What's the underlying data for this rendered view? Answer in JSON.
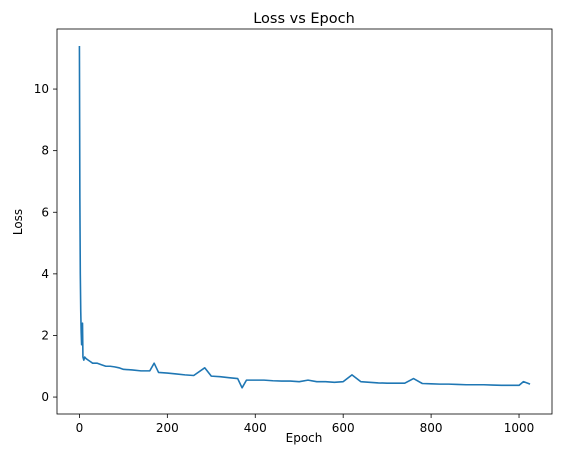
{
  "chart_data": {
    "type": "line",
    "title": "Loss vs Epoch",
    "xlabel": "Epoch",
    "ylabel": "Loss",
    "xlim": [
      -51,
      1075
    ],
    "ylim": [
      -0.55,
      11.95
    ],
    "xticks": [
      0,
      200,
      400,
      600,
      800,
      1000
    ],
    "xtick_labels": [
      "0",
      "200",
      "400",
      "600",
      "800",
      "1000"
    ],
    "yticks": [
      0,
      2,
      4,
      6,
      8,
      10
    ],
    "ytick_labels": [
      "0",
      "2",
      "4",
      "6",
      "8",
      "10"
    ],
    "grid": false,
    "legend": "none",
    "color": "#1f77b4",
    "series": [
      {
        "x": [
          0,
          1,
          2,
          3,
          4,
          5,
          6,
          7,
          8,
          10,
          12,
          15,
          20,
          25,
          30,
          40,
          50,
          60,
          70,
          80,
          90,
          100,
          120,
          140,
          160,
          170,
          180,
          200,
          220,
          240,
          260,
          285,
          300,
          320,
          340,
          360,
          370,
          380,
          400,
          420,
          440,
          460,
          480,
          500,
          520,
          540,
          560,
          580,
          600,
          620,
          640,
          660,
          680,
          700,
          720,
          740,
          760,
          780,
          800,
          820,
          840,
          860,
          880,
          900,
          920,
          940,
          960,
          980,
          1000,
          1010,
          1020,
          1025
        ],
        "y": [
          11.4,
          6.5,
          4.0,
          2.8,
          2.1,
          1.7,
          1.9,
          2.4,
          1.3,
          1.2,
          1.3,
          1.25,
          1.2,
          1.15,
          1.1,
          1.1,
          1.05,
          1.0,
          1.0,
          0.98,
          0.95,
          0.9,
          0.88,
          0.85,
          0.85,
          1.1,
          0.8,
          0.78,
          0.75,
          0.72,
          0.7,
          0.95,
          0.68,
          0.66,
          0.63,
          0.6,
          0.3,
          0.55,
          0.55,
          0.55,
          0.53,
          0.52,
          0.52,
          0.5,
          0.55,
          0.5,
          0.5,
          0.48,
          0.5,
          0.72,
          0.5,
          0.48,
          0.46,
          0.45,
          0.45,
          0.45,
          0.6,
          0.44,
          0.43,
          0.42,
          0.42,
          0.41,
          0.4,
          0.4,
          0.4,
          0.39,
          0.38,
          0.38,
          0.38,
          0.5,
          0.45,
          0.42
        ]
      }
    ]
  }
}
